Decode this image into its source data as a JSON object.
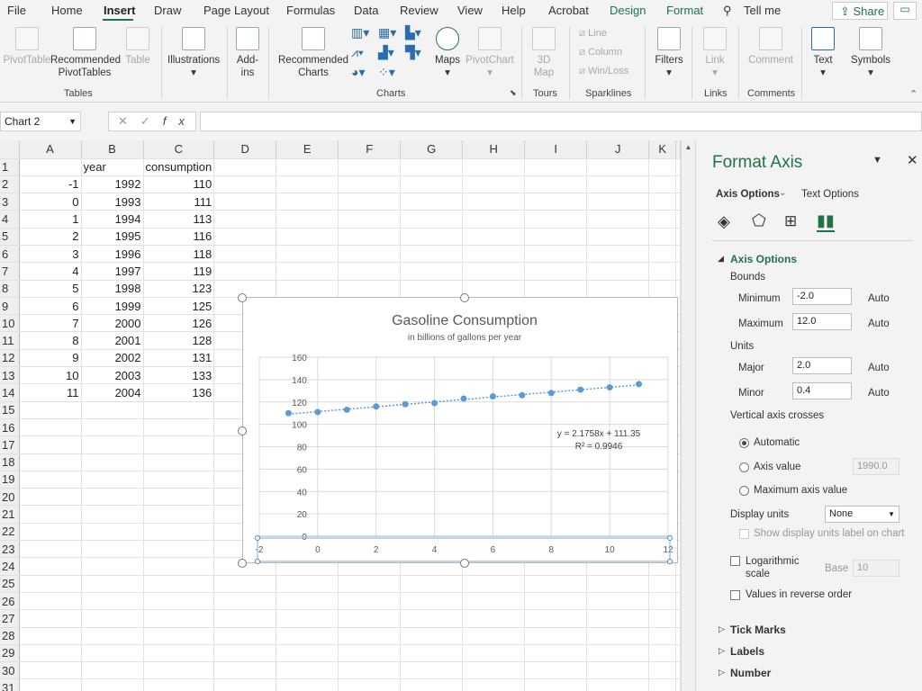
{
  "tabs": [
    "File",
    "Home",
    "Insert",
    "Draw",
    "Page Layout",
    "Formulas",
    "Data",
    "Review",
    "View",
    "Help",
    "Acrobat",
    "Design",
    "Format"
  ],
  "active_tab": "Insert",
  "tell_me": "Tell me",
  "share": "Share",
  "ribbon": {
    "pivottable": "PivotTable",
    "recommended_pivot": "Recommended\nPivotTables",
    "table": "Table",
    "group_tables": "Tables",
    "illustrations": "Illustrations",
    "addins": "Add-\nins",
    "recommended_charts": "Recommended\nCharts",
    "maps": "Maps",
    "pivotchart": "PivotChart",
    "group_charts": "Charts",
    "map3d": "3D\nMap",
    "group_tours": "Tours",
    "line": "Line",
    "column": "Column",
    "winloss": "Win/Loss",
    "group_sparklines": "Sparklines",
    "filters": "Filters",
    "link": "Link",
    "group_links": "Links",
    "comment": "Comment",
    "group_comments": "Comments",
    "text": "Text",
    "symbols": "Symbols"
  },
  "namebox": "Chart 2",
  "fx": "fx",
  "columns": [
    "A",
    "B",
    "C",
    "D",
    "E",
    "F",
    "G",
    "H",
    "I",
    "J",
    "K"
  ],
  "rows": [
    [
      "",
      "year",
      "consumption"
    ],
    [
      "-1",
      "1992",
      "110"
    ],
    [
      "0",
      "1993",
      "111"
    ],
    [
      "1",
      "1994",
      "113"
    ],
    [
      "2",
      "1995",
      "116"
    ],
    [
      "3",
      "1996",
      "118"
    ],
    [
      "4",
      "1997",
      "119"
    ],
    [
      "5",
      "1998",
      "123"
    ],
    [
      "6",
      "1999",
      "125"
    ],
    [
      "7",
      "2000",
      "126"
    ],
    [
      "8",
      "2001",
      "128"
    ],
    [
      "9",
      "2002",
      "131"
    ],
    [
      "10",
      "2003",
      "133"
    ],
    [
      "11",
      "2004",
      "136"
    ]
  ],
  "row_count": 31,
  "chart_data": {
    "type": "scatter",
    "title": "Gasoline Consumption",
    "subtitle": "in billions of gallons per year",
    "x": [
      -1,
      0,
      1,
      2,
      3,
      4,
      5,
      6,
      7,
      8,
      9,
      10,
      11
    ],
    "y": [
      110,
      111,
      113,
      116,
      118,
      119,
      123,
      125,
      126,
      128,
      131,
      133,
      136
    ],
    "xlim": [
      -2,
      12
    ],
    "ylim": [
      0,
      160
    ],
    "xticks": [
      "-2",
      "0",
      "2",
      "4",
      "6",
      "8",
      "10",
      "12"
    ],
    "yticks": [
      "0",
      "20",
      "40",
      "60",
      "80",
      "100",
      "120",
      "140",
      "160"
    ],
    "trendline": {
      "equation": "y = 2.1758x + 111.35",
      "r2": "R² = 0.9946",
      "slope": 2.1758,
      "intercept": 111.35
    },
    "series_color": "#5b9bd5",
    "grid": true
  },
  "pane": {
    "title": "Format Axis",
    "axis_options_tab": "Axis Options",
    "text_options_tab": "Text Options",
    "section": "Axis Options",
    "bounds": "Bounds",
    "minimum_label": "Minimum",
    "minimum": "-2.0",
    "maximum_label": "Maximum",
    "maximum": "12.0",
    "auto": "Auto",
    "units": "Units",
    "major_label": "Major",
    "major": "2.0",
    "minor_label": "Minor",
    "minor": "0.4",
    "vertical_crosses": "Vertical axis crosses",
    "automatic": "Automatic",
    "axis_value": "Axis value",
    "axis_value_input": "1990.0",
    "max_axis_value": "Maximum axis value",
    "display_units": "Display units",
    "display_units_value": "None",
    "show_units_label": "Show display units label on chart",
    "logarithmic": "Logarithmic\nscale",
    "base": "Base",
    "base_value": "10",
    "reverse": "Values in reverse order",
    "tick_marks": "Tick Marks",
    "labels": "Labels",
    "number": "Number"
  }
}
